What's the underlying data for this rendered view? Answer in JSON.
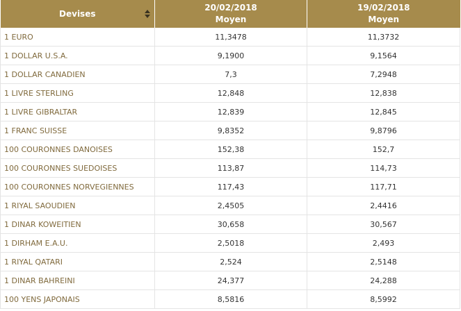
{
  "table": {
    "header": [
      [
        "Devises"
      ],
      [
        "20/02/2018",
        "Moyen"
      ],
      [
        "19/02/2018",
        "Moyen"
      ]
    ],
    "rows": [
      [
        "1 EURO",
        "11,3478",
        "11,3732"
      ],
      [
        "1 DOLLAR U.S.A.",
        "9,1900",
        "9,1564"
      ],
      [
        "1 DOLLAR CANADIEN",
        "7,3",
        "7,2948"
      ],
      [
        "1 LIVRE STERLING",
        "12,848",
        "12,838"
      ],
      [
        "1 LIVRE GIBRALTAR",
        "12,839",
        "12,845"
      ],
      [
        "1 FRANC SUISSE",
        "9,8352",
        "9,8796"
      ],
      [
        "100 COURONNES DANOISES",
        "152,38",
        "152,7"
      ],
      [
        "100 COURONNES SUEDOISES",
        "113,87",
        "114,73"
      ],
      [
        "100 COURONNES NORVEGIENNES",
        "117,43",
        "117,71"
      ],
      [
        "1 RIYAL SAOUDIEN",
        "2,4505",
        "2,4416"
      ],
      [
        "1 DINAR KOWEITIEN",
        "30,658",
        "30,567"
      ],
      [
        "1 DIRHAM E.A.U.",
        "2,5018",
        "2,493"
      ],
      [
        "1 RIYAL QATARI",
        "2,524",
        "2,5148"
      ],
      [
        "1 DINAR BAHREINI",
        "24,377",
        "24,288"
      ],
      [
        "100 YENS JAPONAIS",
        "8,5816",
        "8,5992"
      ]
    ]
  }
}
